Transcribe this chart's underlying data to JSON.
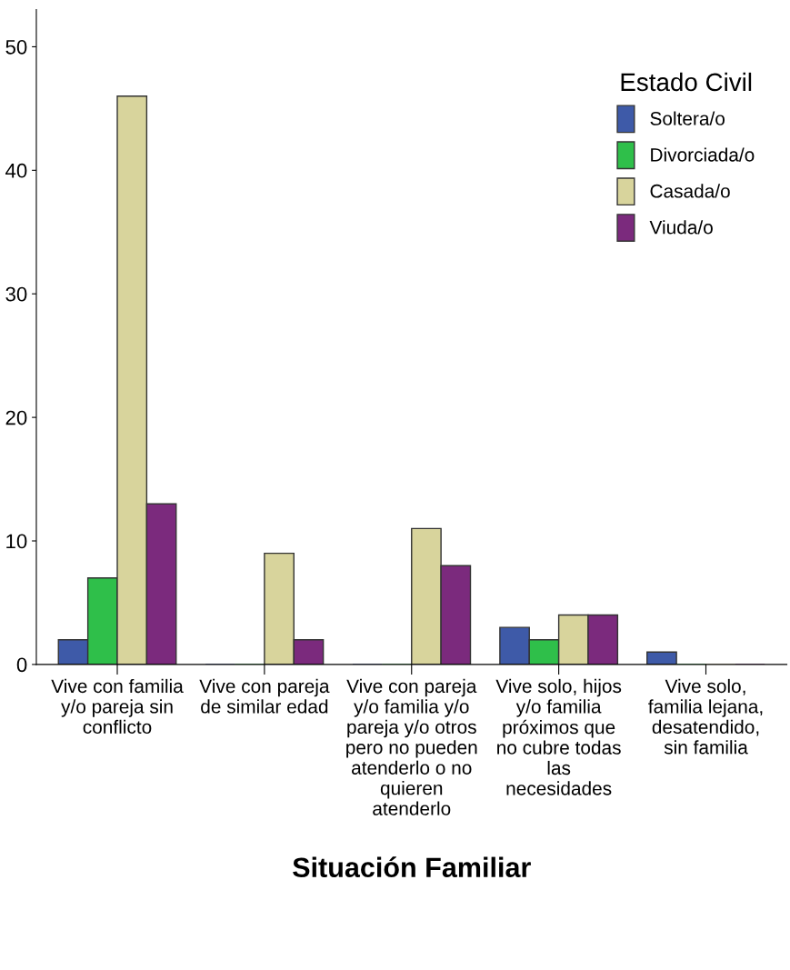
{
  "chart_data": {
    "type": "bar",
    "categories": [
      "Vive con familia\ny/o pareja sin\nconflicto",
      "Vive con pareja\nde similar edad",
      "Vive con pareja\ny/o familia y/o\npareja y/o otros\npero no pueden\natenderlo o no\nquieren\natenderlo",
      "Vive solo, hijos\ny/o familia\npróximos que\nno cubre todas\nlas\nnecesidades",
      "Vive solo,\nfamilia lejana,\ndesatendido,\nsin familia"
    ],
    "series": [
      {
        "name": "Soltera/o",
        "color": "#3e5aa8",
        "values": [
          2,
          0,
          0,
          3,
          1
        ]
      },
      {
        "name": "Divorciada/o",
        "color": "#2fbf4a",
        "values": [
          7,
          0,
          0,
          2,
          0
        ]
      },
      {
        "name": "Casada/o",
        "color": "#d8d49c",
        "values": [
          46,
          9,
          11,
          4,
          0
        ]
      },
      {
        "name": "Viuda/o",
        "color": "#7b2a7d",
        "values": [
          13,
          2,
          8,
          4,
          0
        ]
      }
    ],
    "xlabel": "Situación Familiar",
    "legend_title": "Estado Civil",
    "legend": "top right",
    "ylim": [
      0,
      53
    ],
    "yticks": [
      0,
      10,
      20,
      30,
      40,
      50
    ],
    "grid": false
  }
}
